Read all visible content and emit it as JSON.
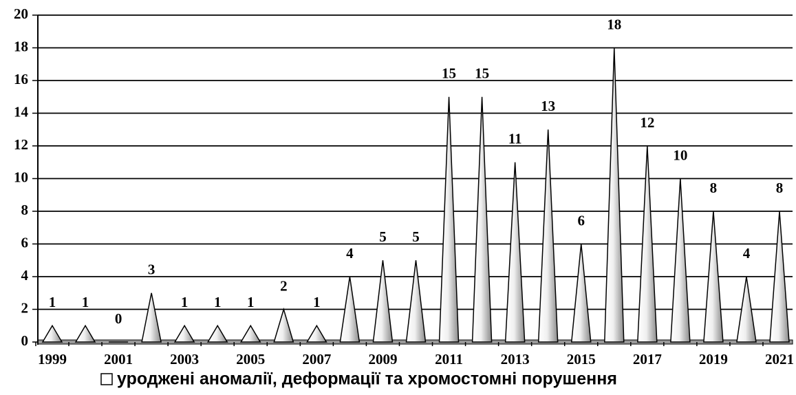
{
  "chart_data": {
    "type": "cone",
    "categories": [
      "1999",
      null,
      "2001",
      null,
      "2003",
      null,
      "2005",
      null,
      "2007",
      null,
      "2009",
      null,
      "2011",
      null,
      "2013",
      null,
      "2015",
      null,
      "2017",
      null,
      "2019",
      null,
      "2021"
    ],
    "series": [
      {
        "name": "уроджені аномалії, деформації та хромостомні порушення",
        "color": "#d9d9d9",
        "values": [
          1,
          1,
          0,
          3,
          1,
          1,
          1,
          2,
          1,
          4,
          5,
          5,
          15,
          15,
          11,
          13,
          6,
          18,
          12,
          10,
          8,
          4,
          8
        ]
      }
    ],
    "ylim": [
      0,
      20
    ],
    "yticks": [
      0,
      2,
      4,
      6,
      8,
      10,
      12,
      14,
      16,
      18,
      20
    ],
    "grid": true,
    "legend": "bottom"
  }
}
